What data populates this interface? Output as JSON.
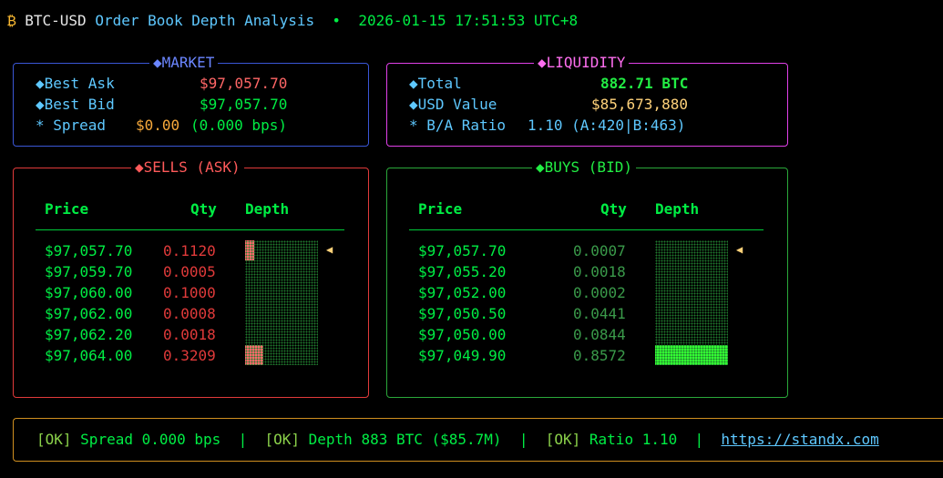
{
  "header": {
    "btc_glyph": "₿",
    "symbol": "BTC-USD",
    "title": "Order Book Depth Analysis",
    "dot": "•",
    "timestamp": "2026-01-15 17:51:53 UTC+8"
  },
  "market": {
    "title": "◆MARKET",
    "best_ask_label": "◆Best Ask",
    "best_ask_value": "$97,057.70",
    "best_bid_label": "◆Best Bid",
    "best_bid_value": "$97,057.70",
    "spread_label": "* Spread",
    "spread_value": "$0.00",
    "spread_bps": "(0.000 bps)"
  },
  "liquidity": {
    "title": "◆LIQUIDITY",
    "total_label": "◆Total",
    "total_value": "882.71 BTC",
    "usd_label": "◆USD Value",
    "usd_value": "$85,673,880",
    "ratio_label": "* B/A Ratio",
    "ratio_value": "1.10 (A:420|B:463)"
  },
  "sells": {
    "title": "◆SELLS (ASK)",
    "headers": {
      "price": "Price",
      "qty": "Qty",
      "depth": "Depth"
    },
    "marker": "◀",
    "rows": [
      {
        "price": "$97,057.70",
        "qty": "0.1120",
        "depth": 0.13
      },
      {
        "price": "$97,059.70",
        "qty": "0.0005",
        "depth": 0.0
      },
      {
        "price": "$97,060.00",
        "qty": "0.1000",
        "depth": 0.0
      },
      {
        "price": "$97,062.00",
        "qty": "0.0008",
        "depth": 0.0
      },
      {
        "price": "$97,062.20",
        "qty": "0.0018",
        "depth": 0.0
      },
      {
        "price": "$97,064.00",
        "qty": "0.3209",
        "depth": 0.25
      }
    ]
  },
  "buys": {
    "title": "◆BUYS (BID)",
    "headers": {
      "price": "Price",
      "qty": "Qty",
      "depth": "Depth"
    },
    "marker": "◀",
    "rows": [
      {
        "price": "$97,057.70",
        "qty": "0.0007",
        "depth": 0.0
      },
      {
        "price": "$97,055.20",
        "qty": "0.0018",
        "depth": 0.0
      },
      {
        "price": "$97,052.00",
        "qty": "0.0002",
        "depth": 0.0
      },
      {
        "price": "$97,050.50",
        "qty": "0.0441",
        "depth": 0.0
      },
      {
        "price": "$97,050.00",
        "qty": "0.0844",
        "depth": 0.0
      },
      {
        "price": "$97,049.90",
        "qty": "0.8572",
        "depth": 1.0
      }
    ]
  },
  "status": {
    "ok1": "[OK]",
    "msg1": "Spread 0.000 bps",
    "sep": "|",
    "ok2": "[OK]",
    "msg2": "Depth 883 BTC ($85.7M)",
    "ok3": "[OK]",
    "msg3": "Ratio 1.10",
    "link": "https://standx.com"
  },
  "colors": {
    "ask_bar": "#ff6b6b",
    "bid_bar": "#33ff33",
    "market_border": "#3a56d6",
    "liquidity_border": "#e040e8",
    "sells_border": "#e03a3a",
    "buys_border": "#2aa83a",
    "status_border": "#d09020"
  }
}
